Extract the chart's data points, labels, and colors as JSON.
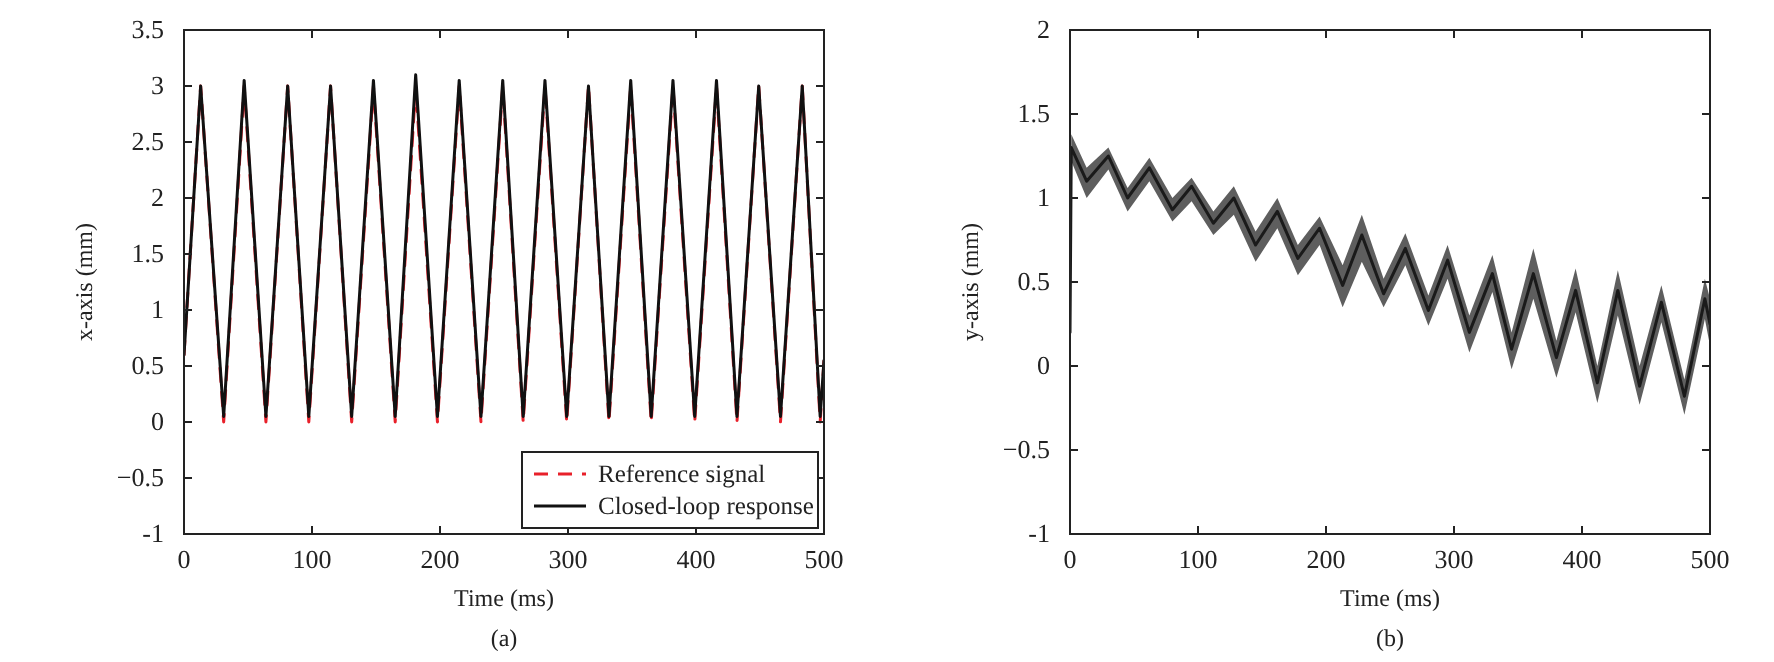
{
  "chart_data": [
    {
      "type": "line",
      "xlabel": "Time (ms)",
      "ylabel": "x-axis (mm)",
      "annotations": [
        "(a)"
      ],
      "xlim": [
        0,
        500
      ],
      "xticks": [
        0,
        100,
        200,
        300,
        400,
        500
      ],
      "ylim": [
        -1,
        3.5
      ],
      "yticks": [
        -1,
        {
          "value": -0.5,
          "label": "−0.5"
        },
        0,
        0.5,
        1,
        1.5,
        2,
        2.5,
        3,
        3.5
      ],
      "grid": false,
      "legend": "bottom right",
      "marker": "none",
      "x": [
        0,
        13,
        31,
        47,
        64,
        81,
        97.5,
        114.5,
        131,
        148,
        165,
        181,
        198,
        215,
        232,
        249,
        265,
        282,
        299,
        316,
        332,
        349,
        365,
        382,
        399,
        416,
        432,
        449,
        466,
        483,
        497,
        500
      ],
      "series": [
        {
          "name": "Reference signal",
          "color": "#e8202a",
          "line_style": "dashed",
          "values": [
            0.6,
            3,
            0,
            3,
            0,
            3,
            0,
            3,
            0,
            3,
            0,
            3,
            0,
            3,
            0,
            3,
            0,
            3,
            0,
            3,
            0,
            3,
            0,
            3,
            0,
            3,
            0,
            3,
            0,
            3,
            0,
            0.55
          ]
        },
        {
          "name": "Closed-loop response",
          "color": "#111111",
          "line_style": "solid",
          "values": [
            0.6,
            3.0,
            0.05,
            3.05,
            0.05,
            3.0,
            0.05,
            3.0,
            0.05,
            3.05,
            0.05,
            3.1,
            0.05,
            3.05,
            0.05,
            3.05,
            0.05,
            3.05,
            0.05,
            3.0,
            0.05,
            3.05,
            0.05,
            3.05,
            0.05,
            3.05,
            0.05,
            3.0,
            0.05,
            3.0,
            0.05,
            0.55
          ]
        }
      ]
    },
    {
      "type": "line",
      "xlabel": "Time (ms)",
      "ylabel": "y-axis (mm)",
      "annotations": [
        "(b)"
      ],
      "xlim": [
        0,
        500
      ],
      "xticks": [
        0,
        100,
        200,
        300,
        400,
        500
      ],
      "ylim": [
        -1,
        2
      ],
      "yticks": [
        -1,
        {
          "value": -0.5,
          "label": "−0.5"
        },
        0,
        0.5,
        1,
        1.5,
        2
      ],
      "grid": false,
      "legend": false,
      "marker": "none",
      "x": [
        0,
        1,
        13,
        30,
        45,
        62,
        80,
        95,
        112,
        128,
        145,
        162,
        178,
        195,
        213,
        228,
        245,
        262,
        280,
        295,
        312,
        330,
        345,
        362,
        380,
        395,
        412,
        428,
        445,
        462,
        480,
        496,
        500
      ],
      "series": [
        {
          "color": "#1a1a1a",
          "line_style": "solid",
          "values": [
            0.2,
            1.3,
            1.1,
            1.25,
            1.0,
            1.18,
            0.93,
            1.07,
            0.85,
            1.0,
            0.72,
            0.92,
            0.64,
            0.82,
            0.48,
            0.78,
            0.43,
            0.7,
            0.33,
            0.63,
            0.2,
            0.55,
            0.1,
            0.55,
            0.05,
            0.45,
            -0.1,
            0.45,
            -0.12,
            0.38,
            -0.18,
            0.4,
            0.25
          ],
          "lower": [
            0.15,
            1.22,
            1.0,
            1.17,
            0.92,
            1.1,
            0.86,
            0.98,
            0.78,
            0.9,
            0.62,
            0.82,
            0.54,
            0.72,
            0.35,
            0.62,
            0.35,
            0.6,
            0.24,
            0.52,
            0.08,
            0.44,
            -0.02,
            0.4,
            -0.07,
            0.32,
            -0.22,
            0.3,
            -0.23,
            0.26,
            -0.29,
            0.28,
            0.12
          ],
          "upper": [
            0.25,
            1.38,
            1.18,
            1.3,
            1.06,
            1.24,
            1.0,
            1.12,
            0.92,
            1.07,
            0.8,
            1.0,
            0.72,
            0.89,
            0.6,
            0.9,
            0.52,
            0.79,
            0.42,
            0.72,
            0.3,
            0.66,
            0.2,
            0.7,
            0.15,
            0.58,
            0.0,
            0.57,
            0.0,
            0.48,
            -0.08,
            0.52,
            0.4
          ]
        }
      ]
    }
  ]
}
